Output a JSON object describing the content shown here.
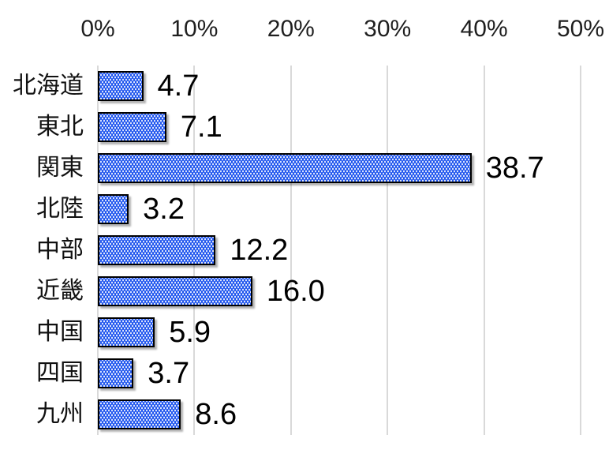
{
  "chart_data": {
    "type": "bar",
    "orientation": "horizontal",
    "title": "",
    "categories": [
      "北海道",
      "東北",
      "関東",
      "北陸",
      "中部",
      "近畿",
      "中国",
      "四国",
      "九州"
    ],
    "values": [
      4.7,
      7.1,
      38.7,
      3.2,
      12.2,
      16.0,
      5.9,
      3.7,
      8.6
    ],
    "value_labels": [
      "4.7",
      "7.1",
      "38.7",
      "3.2",
      "12.2",
      "16.0",
      "5.9",
      "3.7",
      "8.6"
    ],
    "x_axis": {
      "position": "top",
      "min": 0,
      "max": 50,
      "tick_step": 10,
      "tick_labels": [
        "0%",
        "10%",
        "20%",
        "30%",
        "40%",
        "50%"
      ],
      "unit": "percent"
    },
    "grid": "vertical",
    "legend": false,
    "data_label_position": "outside-end",
    "colors": {
      "bar_fill": "#1f55ee",
      "bar_pattern_dots": "#ffffff",
      "bar_border": "#000000",
      "gridline": "#d9d9d9",
      "tick_text": "#1f1f1f",
      "category_text": "#111111",
      "value_text": "#000000",
      "background": "#ffffff"
    }
  }
}
